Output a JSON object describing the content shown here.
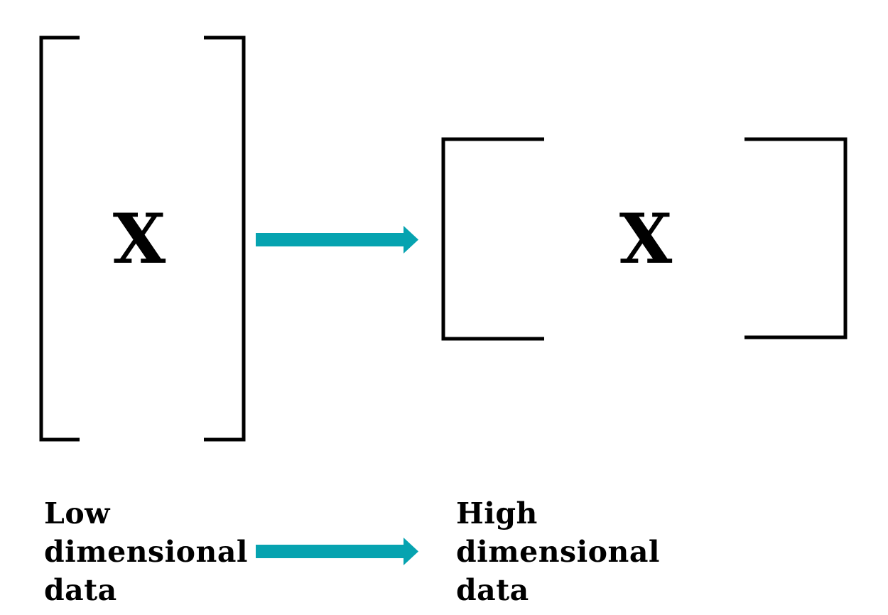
{
  "colors": {
    "arrow": "#06A3B0",
    "bracket": "#000000",
    "background": "#FFFFFF"
  },
  "icons": {
    "transform_arrow": "arrow-right-icon",
    "caption_arrow": "arrow-right-icon"
  },
  "left_matrix": {
    "symbol": "X",
    "caption_lines": [
      "Low",
      "dimensional",
      "data"
    ]
  },
  "right_matrix": {
    "symbol": "X",
    "caption_lines": [
      "High",
      "dimensional",
      "data"
    ]
  }
}
